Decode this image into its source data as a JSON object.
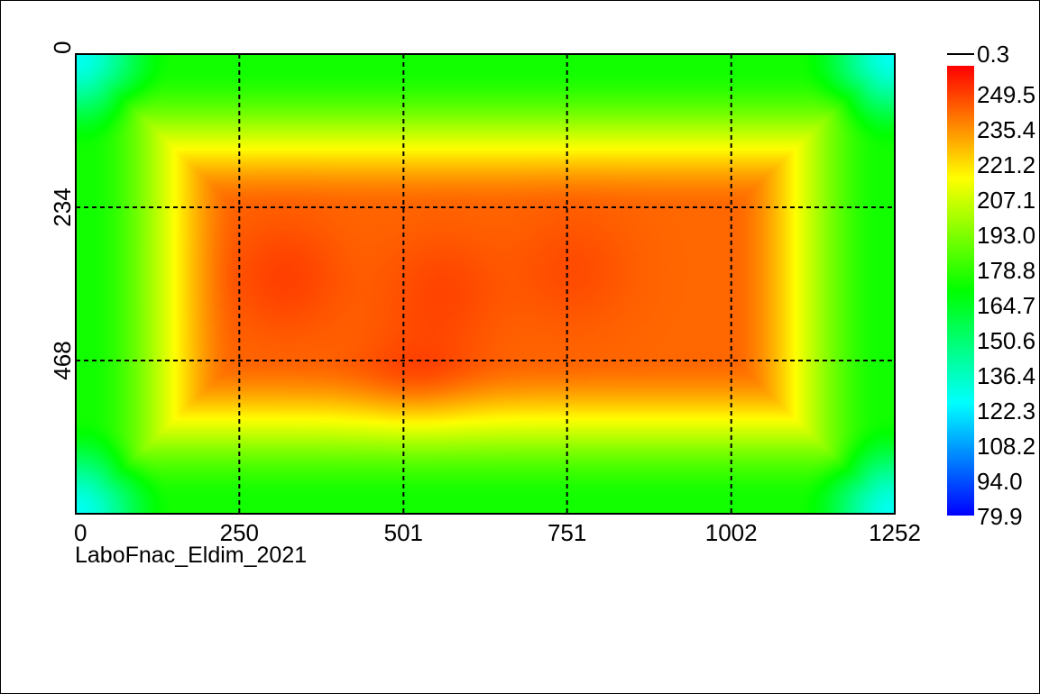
{
  "chart_data": {
    "type": "heatmap",
    "title": "",
    "caption": "LaboFnac_Eldim_2021",
    "x_ticks": [
      "0",
      "250",
      "501",
      "751",
      "1002",
      "1252"
    ],
    "y_ticks": [
      "0",
      "234",
      "468"
    ],
    "xlim": [
      0,
      1252
    ],
    "ylim": [
      0,
      702
    ],
    "grid": true,
    "grid_style": "dashed",
    "colorbar": {
      "top_label": "0.3",
      "labels": [
        "249.5",
        "235.4",
        "221.2",
        "207.1",
        "193.0",
        "178.8",
        "164.7",
        "150.6",
        "136.4",
        "122.3",
        "108.2",
        "94.0",
        "79.9"
      ],
      "min": 79.9,
      "max": 263.6
    },
    "color_scale": [
      "#0000ff",
      "#00ffff",
      "#00ff00",
      "#ffff00",
      "#ff0000"
    ],
    "field": {
      "peak_regions": [
        {
          "x": 320,
          "y": 340,
          "value": 252
        },
        {
          "x": 560,
          "y": 360,
          "value": 251
        },
        {
          "x": 760,
          "y": 330,
          "value": 250
        },
        {
          "x": 520,
          "y": 520,
          "value": 253
        }
      ],
      "center_plateau_value": 245,
      "edge_value": 175,
      "corner_value": 128
    }
  }
}
